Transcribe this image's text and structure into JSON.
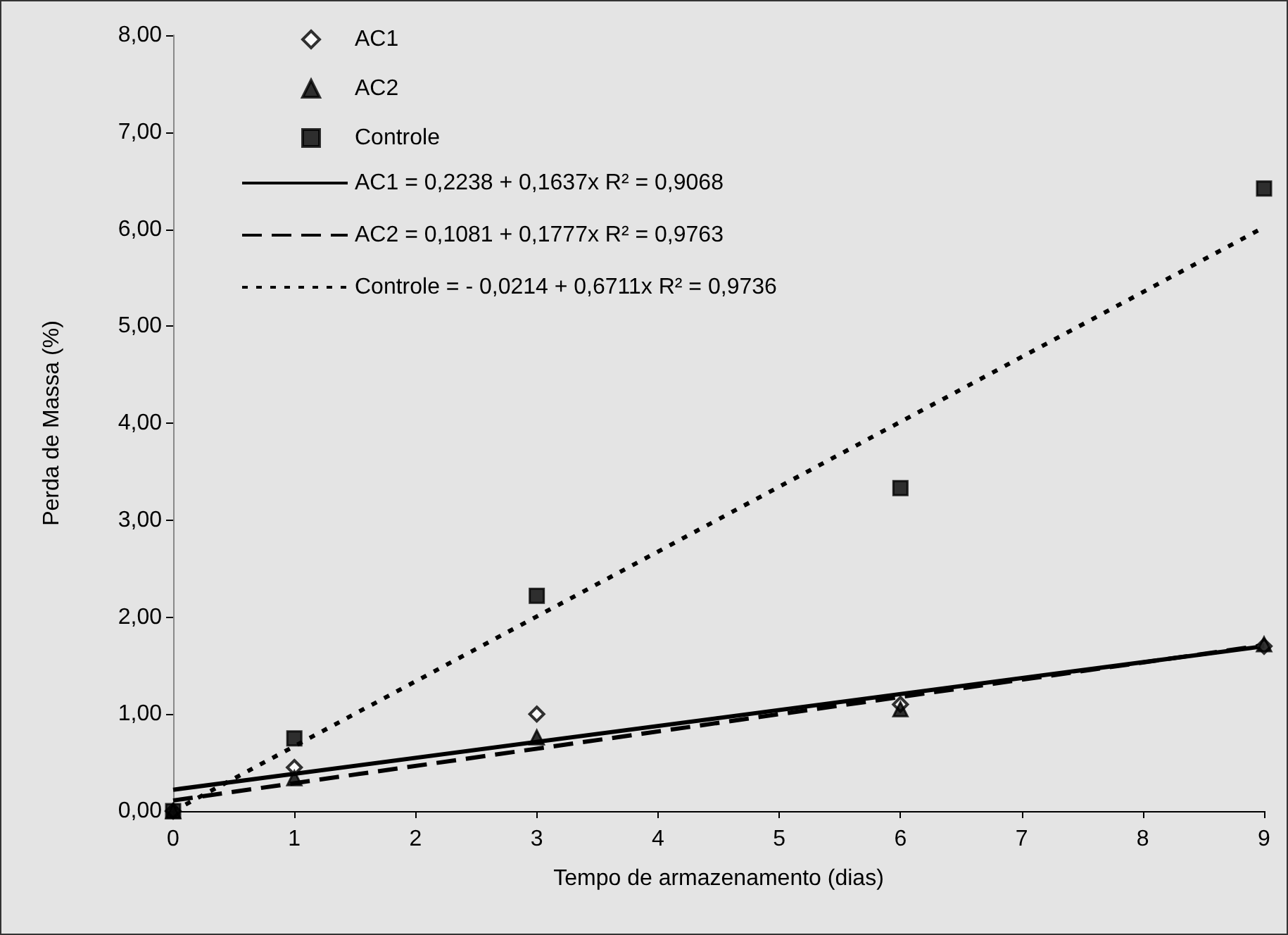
{
  "chart_data": {
    "type": "scatter",
    "xlabel": "Tempo de armazenamento (dias)",
    "ylabel": "Perda de Massa (%)",
    "series": [
      {
        "name": "AC1",
        "marker": "diamond",
        "color": "#000000",
        "x": [
          0,
          1,
          3,
          6,
          9
        ],
        "values": [
          0,
          0.45,
          1.0,
          1.1,
          1.7
        ]
      },
      {
        "name": "AC2",
        "marker": "triangle",
        "color": "#000000",
        "x": [
          0,
          1,
          3,
          6,
          9
        ],
        "values": [
          0,
          0.34,
          0.76,
          1.05,
          1.72
        ]
      },
      {
        "name": "Controle",
        "marker": "square",
        "color": "#000000",
        "x": [
          0,
          1,
          3,
          6,
          9
        ],
        "values": [
          0,
          0.75,
          2.22,
          3.33,
          6.42
        ]
      },
      {
        "name": "AC1 = 0,2238 + 0,1637x R² = 0,9068",
        "type": "line",
        "line_style": "solid",
        "color": "#000000",
        "x": [
          0,
          9
        ],
        "values": [
          0.22,
          1.7
        ]
      },
      {
        "name": "AC2 = 0,1081 + 0,1777x R² = 0,9763",
        "type": "line",
        "line_style": "dashed",
        "color": "#000000",
        "x": [
          0,
          9
        ],
        "values": [
          0.11,
          1.71
        ]
      },
      {
        "name": "Controle = - 0,0214 + 0,6711x R² = 0,9736",
        "type": "line",
        "line_style": "dotted",
        "color": "#000000",
        "x": [
          0,
          9
        ],
        "values": [
          0,
          6.02
        ]
      }
    ],
    "xlim": [
      0,
      9
    ],
    "xticks": [
      0,
      1,
      2,
      3,
      4,
      5,
      6,
      7,
      8,
      9
    ],
    "ylim": [
      0,
      8
    ],
    "yticks": [
      {
        "value": 0,
        "label": "0,00"
      },
      {
        "value": 1,
        "label": "1,00"
      },
      {
        "value": 2,
        "label": "2,00"
      },
      {
        "value": 3,
        "label": "3,00"
      },
      {
        "value": 4,
        "label": "4,00"
      },
      {
        "value": 5,
        "label": "5,00"
      },
      {
        "value": 6,
        "label": "6,00"
      },
      {
        "value": 7,
        "label": "7,00"
      },
      {
        "value": 8,
        "label": "8,00"
      }
    ],
    "grid": false,
    "legend": "top left"
  }
}
